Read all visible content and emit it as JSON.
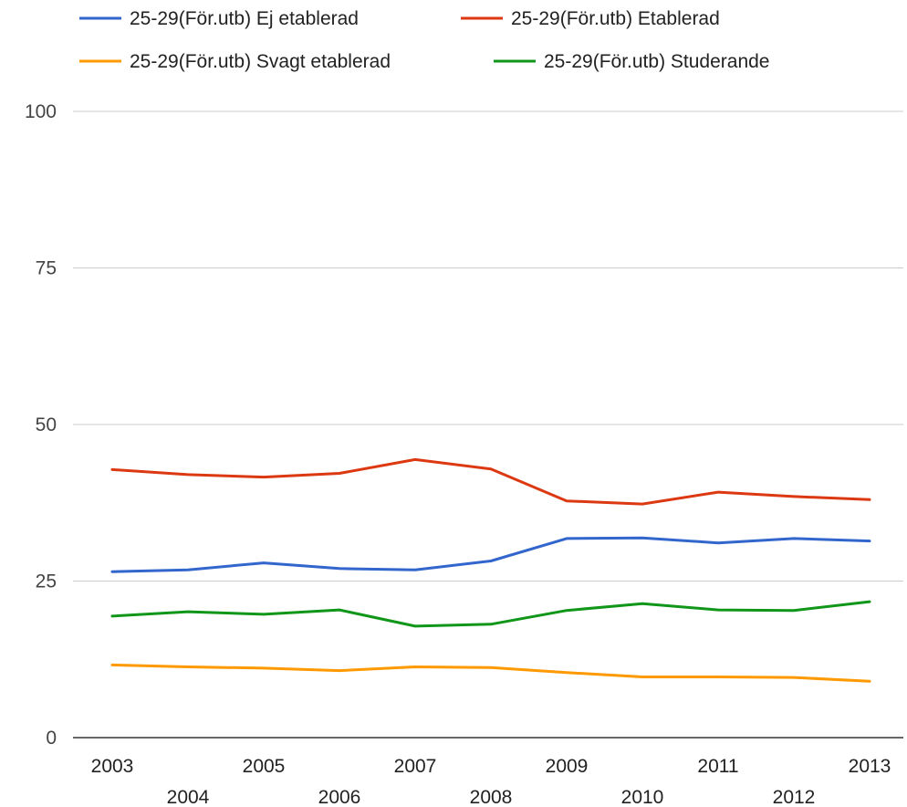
{
  "chart_data": {
    "type": "line",
    "title": "",
    "xlabel": "",
    "ylabel": "",
    "x": [
      "2003",
      "2004",
      "2005",
      "2006",
      "2007",
      "2008",
      "2009",
      "2010",
      "2011",
      "2012",
      "2013"
    ],
    "ylim": [
      0,
      100
    ],
    "yticks": [
      "0",
      "25",
      "50",
      "75",
      "100"
    ],
    "grid": true,
    "legend_position": "top",
    "series": [
      {
        "name": "25-29(För.utb) Ej etablerad",
        "color": "#3366cc",
        "values": [
          26.5,
          26.8,
          27.9,
          27.0,
          26.8,
          28.2,
          31.8,
          31.9,
          31.1,
          31.8,
          31.4
        ]
      },
      {
        "name": "25-29(För.utb) Etablerad",
        "color": "#dc3912",
        "values": [
          42.8,
          42.0,
          41.6,
          42.2,
          44.4,
          42.9,
          37.8,
          37.3,
          39.2,
          38.5,
          38.0
        ]
      },
      {
        "name": "25-29(För.utb) Svagt etablerad",
        "color": "#ff9900",
        "values": [
          11.6,
          11.3,
          11.1,
          10.7,
          11.3,
          11.2,
          10.4,
          9.7,
          9.7,
          9.6,
          9.0
        ]
      },
      {
        "name": "25-29(För.utb) Studerande",
        "color": "#109618",
        "values": [
          19.4,
          20.1,
          19.7,
          20.4,
          17.8,
          18.1,
          20.3,
          21.4,
          20.4,
          20.3,
          21.7
        ]
      }
    ]
  }
}
